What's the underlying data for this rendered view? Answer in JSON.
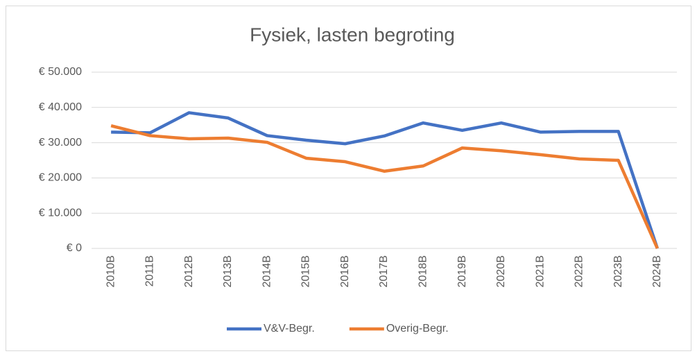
{
  "chart_data": {
    "type": "line",
    "title": "Fysiek, lasten begroting",
    "categories": [
      "2010B",
      "2011B",
      "2012B",
      "2013B",
      "2014B",
      "2015B",
      "2016B",
      "2017B",
      "2018B",
      "2019B",
      "2020B",
      "2021B",
      "2022B",
      "2023B",
      "2024B"
    ],
    "series": [
      {
        "name": "V&V-Begr.",
        "color": "#4472c4",
        "values": [
          33000,
          32800,
          38500,
          37000,
          32000,
          30700,
          29700,
          31900,
          35600,
          33500,
          35600,
          33000,
          33200,
          33200,
          0
        ]
      },
      {
        "name": "Overig-Begr.",
        "color": "#ed7d31",
        "values": [
          34800,
          32000,
          31100,
          31300,
          30100,
          25600,
          24600,
          21900,
          23400,
          28500,
          27700,
          26600,
          25400,
          25000,
          0
        ]
      }
    ],
    "ylim": [
      0,
      50000
    ],
    "yticks": [
      {
        "value": 0,
        "label": "€ 0"
      },
      {
        "value": 10000,
        "label": "€ 10.000"
      },
      {
        "value": 20000,
        "label": "€ 20.000"
      },
      {
        "value": 30000,
        "label": "€ 30.000"
      },
      {
        "value": 40000,
        "label": "€ 40.000"
      },
      {
        "value": 50000,
        "label": "€ 50.000"
      }
    ],
    "grid": true,
    "legend": "bottom"
  }
}
